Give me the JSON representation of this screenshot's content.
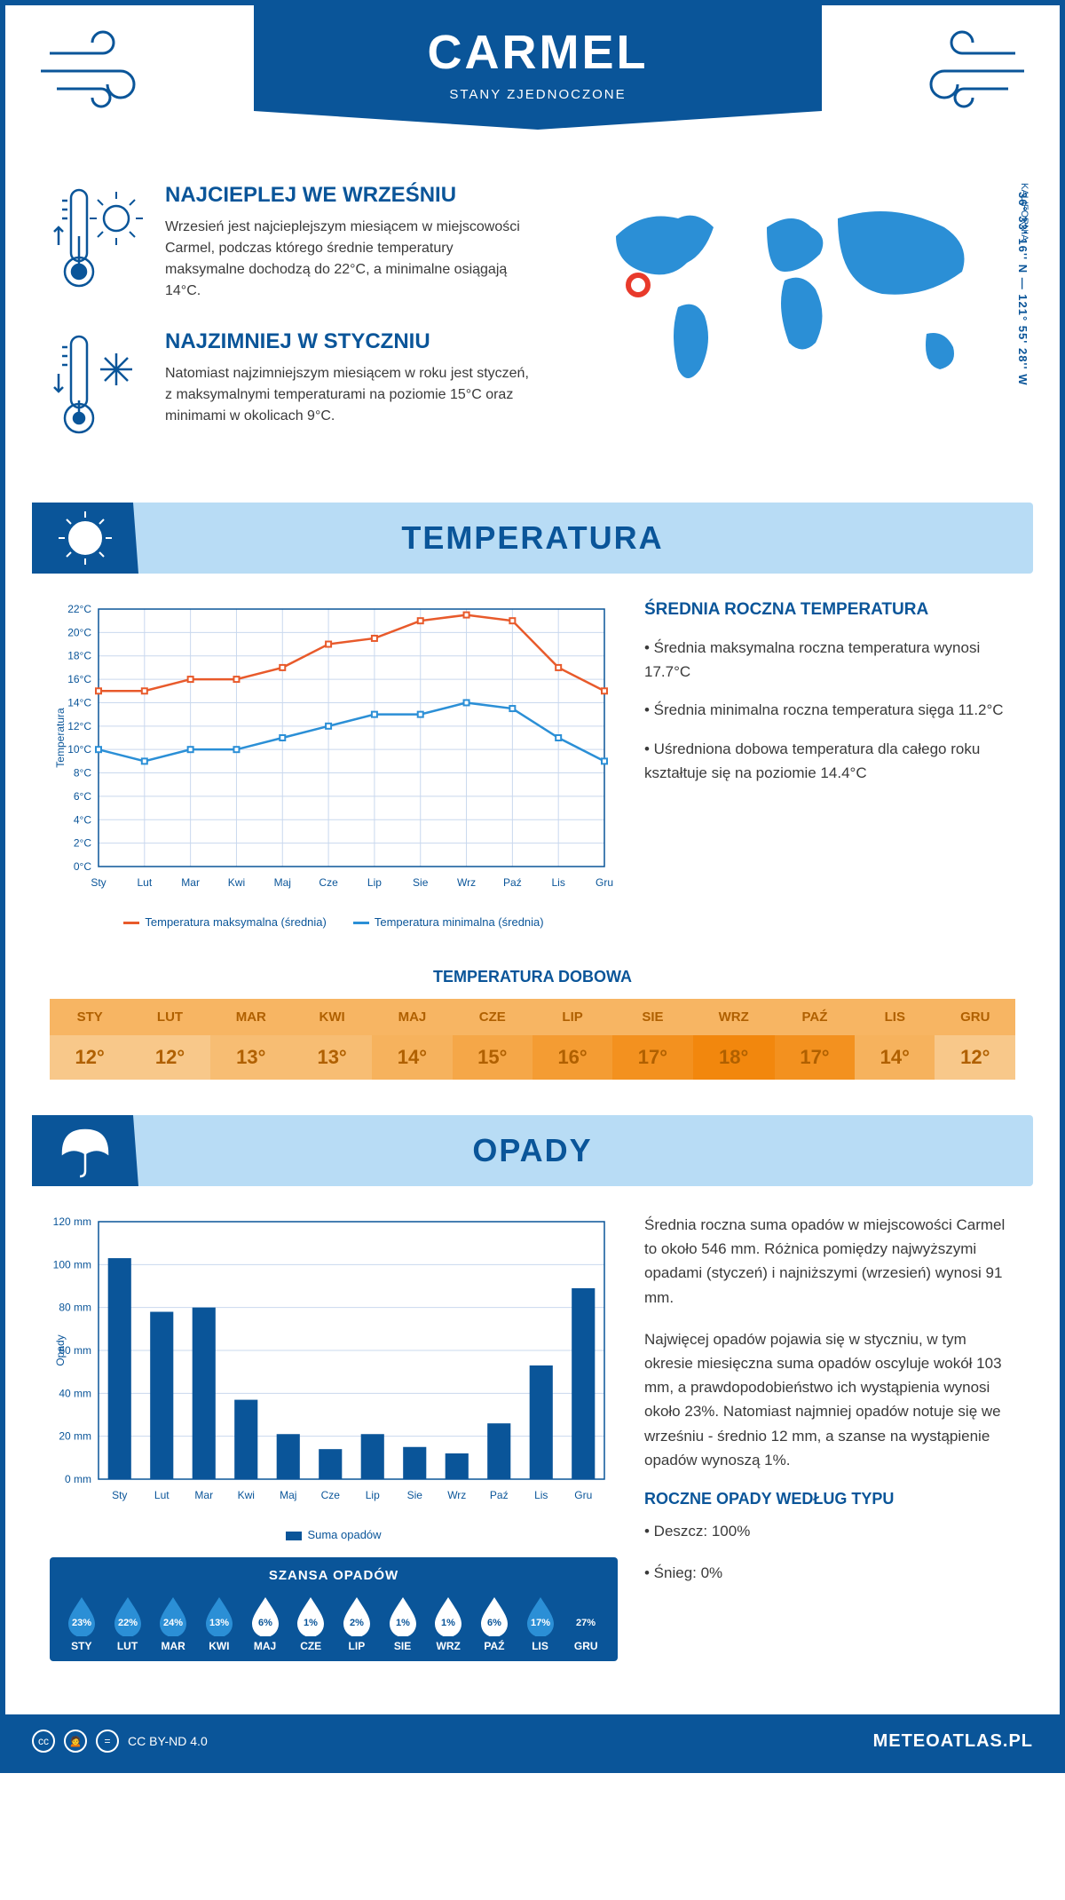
{
  "header": {
    "city": "CARMEL",
    "country": "STANY ZJEDNOCZONE"
  },
  "intro": {
    "warm": {
      "title": "NAJCIEPLEJ WE WRZEŚNIU",
      "text": "Wrzesień jest najcieplejszym miesiącem w miejscowości Carmel, podczas którego średnie temperatury maksymalne dochodzą do 22°C, a minimalne osiągają 14°C."
    },
    "cold": {
      "title": "NAJZIMNIEJ W STYCZNIU",
      "text": "Natomiast najzimniejszym miesiącem w roku jest styczeń, z maksymalnymi temperaturami na poziomie 15°C oraz minimami w okolicach 9°C."
    },
    "coords": "36° 33' 16'' N — 121° 55' 28'' W",
    "region": "KALIFORNIA"
  },
  "months": [
    "Sty",
    "Lut",
    "Mar",
    "Kwi",
    "Maj",
    "Cze",
    "Lip",
    "Sie",
    "Wrz",
    "Paź",
    "Lis",
    "Gru"
  ],
  "months_upper": [
    "STY",
    "LUT",
    "MAR",
    "KWI",
    "MAJ",
    "CZE",
    "LIP",
    "SIE",
    "WRZ",
    "PAŹ",
    "LIS",
    "GRU"
  ],
  "temperature": {
    "section_title": "TEMPERATURA",
    "axis_label": "Temperatura",
    "ylim": [
      0,
      22
    ],
    "ytick_step": 2,
    "max_series": {
      "label": "Temperatura maksymalna (średnia)",
      "color": "#e85a2b",
      "values": [
        15,
        15,
        16,
        16,
        17,
        19,
        19.5,
        21,
        21.5,
        21,
        17,
        15
      ]
    },
    "min_series": {
      "label": "Temperatura minimalna (średnia)",
      "color": "#2b8fd6",
      "values": [
        10,
        9,
        10,
        10,
        11,
        12,
        13,
        13,
        14,
        13.5,
        11,
        9
      ]
    },
    "grid_color": "#c9d8ee",
    "annual_title": "ŚREDNIA ROCZNA TEMPERATURA",
    "bullet1": "• Średnia maksymalna roczna temperatura wynosi 17.7°C",
    "bullet2": "• Średnia minimalna roczna temperatura sięga 11.2°C",
    "bullet3": "• Uśredniona dobowa temperatura dla całego roku kształtuje się na poziomie 14.4°C",
    "dobowa_title": "TEMPERATURA DOBOWA",
    "dobowa": [
      "12°",
      "12°",
      "13°",
      "13°",
      "14°",
      "15°",
      "16°",
      "17°",
      "18°",
      "17°",
      "14°",
      "12°"
    ],
    "dobowa_colors": [
      "#f8c88a",
      "#f8c88a",
      "#f7bd73",
      "#f7bd73",
      "#f6b25d",
      "#f5a748",
      "#f49c33",
      "#f3911f",
      "#f2870d",
      "#f3911f",
      "#f6b25d",
      "#f8c88a"
    ]
  },
  "rain": {
    "section_title": "OPADY",
    "axis_label": "Opady",
    "ylim": [
      0,
      120
    ],
    "ytick_step": 20,
    "bar_color": "#0a5599",
    "grid_color": "#c9d8ee",
    "series_label": "Suma opadów",
    "values": [
      103,
      78,
      80,
      37,
      21,
      14,
      21,
      15,
      12,
      26,
      53,
      89
    ],
    "para1": "Średnia roczna suma opadów w miejscowości Carmel to około 546 mm. Różnica pomiędzy najwyższymi opadami (styczeń) i najniższymi (wrzesień) wynosi 91 mm.",
    "para2": "Najwięcej opadów pojawia się w styczniu, w tym okresie miesięczna suma opadów oscyluje wokół 103 mm, a prawdopodobieństwo ich wystąpienia wynosi około 23%. Natomiast najmniej opadów notuje się we wrześniu - średnio 12 mm, a szanse na wystąpienie opadów wynoszą 1%.",
    "chance_title": "SZANSA OPADÓW",
    "chance": [
      "23%",
      "22%",
      "24%",
      "13%",
      "6%",
      "1%",
      "2%",
      "1%",
      "1%",
      "6%",
      "17%",
      "27%"
    ],
    "type_title": "ROCZNE OPADY WEDŁUG TYPU",
    "type1": "• Deszcz: 100%",
    "type2": "• Śnieg: 0%"
  },
  "footer": {
    "license": "CC BY-ND 4.0",
    "site": "METEOATLAS.PL"
  }
}
